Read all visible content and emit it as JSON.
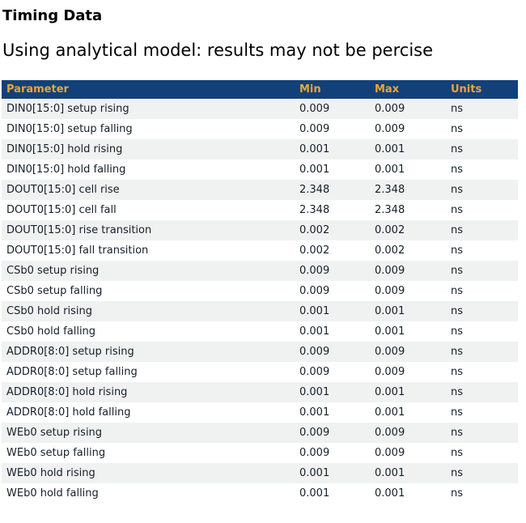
{
  "page": {
    "title": "Timing Data",
    "subtitle": "Using analytical model: results may not be percise"
  },
  "colors": {
    "header_bg": "#124179",
    "header_text": "#efa435",
    "row_alt_bg": "#f0f1f1",
    "body_text": "#151f28"
  },
  "table": {
    "columns": [
      "Parameter",
      "Min",
      "Max",
      "Units"
    ],
    "rows": [
      {
        "parameter": "DIN0[15:0] setup rising",
        "min": "0.009",
        "max": "0.009",
        "units": "ns"
      },
      {
        "parameter": "DIN0[15:0] setup falling",
        "min": "0.009",
        "max": "0.009",
        "units": "ns"
      },
      {
        "parameter": "DIN0[15:0] hold rising",
        "min": "0.001",
        "max": "0.001",
        "units": "ns"
      },
      {
        "parameter": "DIN0[15:0] hold falling",
        "min": "0.001",
        "max": "0.001",
        "units": "ns"
      },
      {
        "parameter": "DOUT0[15:0] cell rise",
        "min": "2.348",
        "max": "2.348",
        "units": "ns"
      },
      {
        "parameter": "DOUT0[15:0] cell fall",
        "min": "2.348",
        "max": "2.348",
        "units": "ns"
      },
      {
        "parameter": "DOUT0[15:0] rise transition",
        "min": "0.002",
        "max": "0.002",
        "units": "ns"
      },
      {
        "parameter": "DOUT0[15:0] fall transition",
        "min": "0.002",
        "max": "0.002",
        "units": "ns"
      },
      {
        "parameter": "CSb0 setup rising",
        "min": "0.009",
        "max": "0.009",
        "units": "ns"
      },
      {
        "parameter": "CSb0 setup falling",
        "min": "0.009",
        "max": "0.009",
        "units": "ns"
      },
      {
        "parameter": "CSb0 hold rising",
        "min": "0.001",
        "max": "0.001",
        "units": "ns"
      },
      {
        "parameter": "CSb0 hold falling",
        "min": "0.001",
        "max": "0.001",
        "units": "ns"
      },
      {
        "parameter": "ADDR0[8:0] setup rising",
        "min": "0.009",
        "max": "0.009",
        "units": "ns"
      },
      {
        "parameter": "ADDR0[8:0] setup falling",
        "min": "0.009",
        "max": "0.009",
        "units": "ns"
      },
      {
        "parameter": "ADDR0[8:0] hold rising",
        "min": "0.001",
        "max": "0.001",
        "units": "ns"
      },
      {
        "parameter": "ADDR0[8:0] hold falling",
        "min": "0.001",
        "max": "0.001",
        "units": "ns"
      },
      {
        "parameter": "WEb0 setup rising",
        "min": "0.009",
        "max": "0.009",
        "units": "ns"
      },
      {
        "parameter": "WEb0 setup falling",
        "min": "0.009",
        "max": "0.009",
        "units": "ns"
      },
      {
        "parameter": "WEb0 hold rising",
        "min": "0.001",
        "max": "0.001",
        "units": "ns"
      },
      {
        "parameter": "WEb0 hold falling",
        "min": "0.001",
        "max": "0.001",
        "units": "ns"
      }
    ]
  }
}
